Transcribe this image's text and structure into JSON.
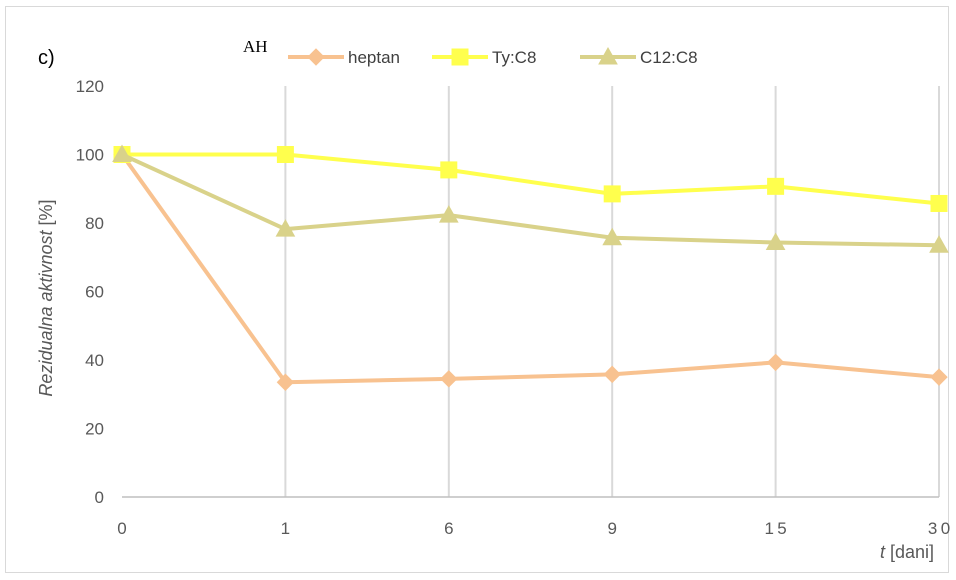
{
  "panel_label": "c)",
  "legend_prefix": "AH",
  "colors": {
    "heptan": "#f8c290",
    "tyc8": "#ffff4d",
    "c12c8": "#d9d28a",
    "grid": "#d9d9d9",
    "axis": "#bfbfbf",
    "tick_text": "#595959"
  },
  "chart_data": {
    "type": "line",
    "categories": [
      "0",
      "1",
      "6",
      "9",
      "15",
      "30"
    ],
    "ylim": [
      0,
      120
    ],
    "yticks": [
      "0",
      "20",
      "40",
      "60",
      "80",
      "100",
      "120"
    ],
    "ylabel": "Rezidualna aktivnost [%]",
    "xlabel": "t [dani]",
    "grid": "vertical",
    "legend_position": "top",
    "series": [
      {
        "name": "heptan",
        "marker": "diamond",
        "values": [
          100,
          33.5,
          34.5,
          35.8,
          39.3,
          35
        ]
      },
      {
        "name": "Ty:C8",
        "marker": "square",
        "values": [
          100,
          100,
          95.5,
          88.5,
          90.7,
          85.7
        ]
      },
      {
        "name": "C12:C8",
        "marker": "triangle",
        "values": [
          100,
          78.2,
          82.3,
          75.7,
          74.3,
          73.5
        ]
      }
    ]
  }
}
